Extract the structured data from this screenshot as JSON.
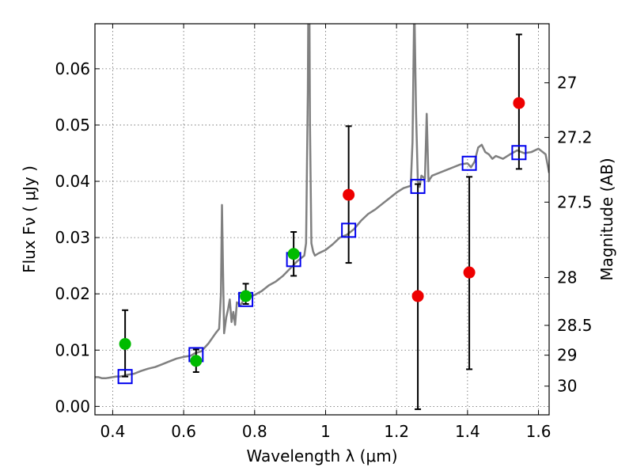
{
  "chart_data": {
    "type": "scatter",
    "xlabel": "Wavelength  λ (μm)",
    "ylabel": "Flux  Fν ( μJy )",
    "ylabel_right": "Magnitude (AB)",
    "xlim": [
      0.35,
      1.63
    ],
    "ylim": [
      -0.0015,
      0.068
    ],
    "grid": true,
    "x_ticks": [
      0.4,
      0.6,
      0.8,
      1.0,
      1.2,
      1.4,
      1.6
    ],
    "x_tick_labels": [
      "0.4",
      "0.6",
      "0.8",
      "1",
      "1.2",
      "1.4",
      "1.6"
    ],
    "y_ticks": [
      0.0,
      0.01,
      0.02,
      0.03,
      0.04,
      0.05,
      0.06
    ],
    "y_tick_labels": [
      "0.00",
      "0.01",
      "0.02",
      "0.03",
      "0.04",
      "0.05",
      "0.06"
    ],
    "right_ticks": [
      {
        "label": "27",
        "flux": 0.0575
      },
      {
        "label": "27.2",
        "flux": 0.0478
      },
      {
        "label": "27.5",
        "flux": 0.0363
      },
      {
        "label": "28",
        "flux": 0.0229
      },
      {
        "label": "28.5",
        "flux": 0.0144
      },
      {
        "label": "29",
        "flux": 0.0091
      },
      {
        "label": "30",
        "flux": 0.0036
      }
    ],
    "series": [
      {
        "name": "Model spectrum",
        "kind": "line",
        "color": "#808080",
        "x": [
          0.35,
          0.36,
          0.37,
          0.38,
          0.39,
          0.4,
          0.41,
          0.42,
          0.43,
          0.44,
          0.46,
          0.48,
          0.5,
          0.52,
          0.54,
          0.56,
          0.58,
          0.6,
          0.62,
          0.63,
          0.65,
          0.67,
          0.69,
          0.7,
          0.705,
          0.708,
          0.711,
          0.714,
          0.72,
          0.725,
          0.73,
          0.735,
          0.74,
          0.745,
          0.75,
          0.76,
          0.77,
          0.78,
          0.79,
          0.8,
          0.82,
          0.84,
          0.86,
          0.88,
          0.9,
          0.92,
          0.94,
          0.945,
          0.95,
          0.953,
          0.956,
          0.96,
          0.965,
          0.97,
          0.98,
          1.0,
          1.02,
          1.04,
          1.06,
          1.08,
          1.1,
          1.12,
          1.14,
          1.16,
          1.18,
          1.2,
          1.22,
          1.24,
          1.245,
          1.25,
          1.255,
          1.26,
          1.265,
          1.27,
          1.28,
          1.285,
          1.29,
          1.3,
          1.32,
          1.34,
          1.36,
          1.38,
          1.4,
          1.41,
          1.42,
          1.43,
          1.44,
          1.45,
          1.46,
          1.47,
          1.48,
          1.5,
          1.52,
          1.54,
          1.56,
          1.58,
          1.6,
          1.62,
          1.63
        ],
        "y": [
          0.0052,
          0.0052,
          0.005,
          0.005,
          0.0051,
          0.0052,
          0.0053,
          0.0053,
          0.0054,
          0.0056,
          0.0058,
          0.0063,
          0.0067,
          0.007,
          0.0075,
          0.008,
          0.0085,
          0.0088,
          0.009,
          0.0094,
          0.0098,
          0.0112,
          0.013,
          0.0138,
          0.02,
          0.0358,
          0.024,
          0.013,
          0.0158,
          0.0172,
          0.019,
          0.015,
          0.0168,
          0.0145,
          0.0185,
          0.018,
          0.019,
          0.0193,
          0.0196,
          0.0198,
          0.0205,
          0.0215,
          0.0222,
          0.0232,
          0.0245,
          0.0258,
          0.0268,
          0.029,
          0.056,
          0.09,
          0.05,
          0.029,
          0.0275,
          0.0268,
          0.0272,
          0.0278,
          0.0288,
          0.03,
          0.0305,
          0.0315,
          0.033,
          0.0342,
          0.035,
          0.036,
          0.037,
          0.038,
          0.0388,
          0.0392,
          0.047,
          0.072,
          0.052,
          0.04,
          0.039,
          0.041,
          0.0405,
          0.052,
          0.04,
          0.041,
          0.0415,
          0.042,
          0.0425,
          0.043,
          0.0432,
          0.0425,
          0.0435,
          0.046,
          0.0465,
          0.0452,
          0.0448,
          0.044,
          0.0445,
          0.044,
          0.0448,
          0.0455,
          0.045,
          0.0452,
          0.0458,
          0.0448,
          0.0415
        ]
      },
      {
        "name": "Green detections",
        "kind": "marker",
        "marker": "circle",
        "color": "#00bb00",
        "points": [
          {
            "x": 0.435,
            "y": 0.0111,
            "yerr_low": 0.0111,
            "yerr_high": 0.0171,
            "errbar": false
          },
          {
            "x": 0.635,
            "y": 0.0081,
            "yerr_low": 0.0061,
            "yerr_high": 0.0101,
            "errbar": true
          },
          {
            "x": 0.775,
            "y": 0.0196,
            "yerr_low": 0.0182,
            "yerr_high": 0.0218,
            "errbar": true
          },
          {
            "x": 0.91,
            "y": 0.0271,
            "yerr_low": 0.0232,
            "yerr_high": 0.031,
            "errbar": true
          }
        ]
      },
      {
        "name": "Red detections",
        "kind": "marker",
        "marker": "circle",
        "color": "#ee0000",
        "points": [
          {
            "x": 1.065,
            "y": 0.0376,
            "yerr_low": 0.0255,
            "yerr_high": 0.0498,
            "errbar": true
          },
          {
            "x": 1.26,
            "y": 0.0196,
            "yerr_low": -0.0005,
            "yerr_high": 0.0395,
            "errbar": true
          },
          {
            "x": 1.405,
            "y": 0.0238,
            "yerr_low": 0.0066,
            "yerr_high": 0.0408,
            "errbar": true
          },
          {
            "x": 1.545,
            "y": 0.0539,
            "yerr_low": 0.0422,
            "yerr_high": 0.0661,
            "errbar": true
          }
        ]
      },
      {
        "name": "Model photometry",
        "kind": "marker",
        "marker": "square-open",
        "color": "#0000ee",
        "points": [
          {
            "x": 0.435,
            "y": 0.0053,
            "errbar": true,
            "yerr_low": 0.0053,
            "yerr_high": 0.0171
          },
          {
            "x": 0.635,
            "y": 0.0092
          },
          {
            "x": 0.775,
            "y": 0.019
          },
          {
            "x": 0.91,
            "y": 0.0261
          },
          {
            "x": 1.065,
            "y": 0.0313
          },
          {
            "x": 1.26,
            "y": 0.0391
          },
          {
            "x": 1.405,
            "y": 0.0432
          },
          {
            "x": 1.545,
            "y": 0.0451
          }
        ]
      }
    ]
  }
}
